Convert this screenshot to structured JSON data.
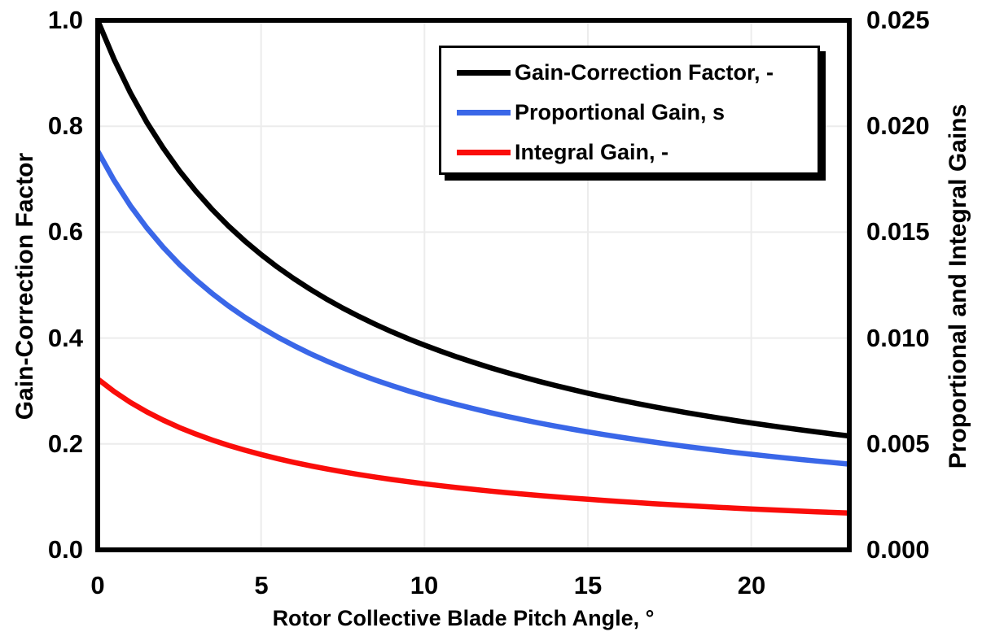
{
  "axes": {
    "x": {
      "title": "Rotor Collective Blade Pitch Angle, °",
      "ticks": [
        "0",
        "5",
        "10",
        "15",
        "20"
      ]
    },
    "y_left": {
      "title": "Gain-Correction Factor",
      "ticks": [
        "1.0",
        "0.8",
        "0.6",
        "0.4",
        "0.2",
        "0.0"
      ]
    },
    "y_right": {
      "title": "Proportional and Integral Gains",
      "ticks": [
        "0.025",
        "0.020",
        "0.015",
        "0.010",
        "0.005",
        "0.000"
      ]
    }
  },
  "legend": {
    "items": [
      {
        "label": "Gain-Correction Factor, -",
        "color": "#000000"
      },
      {
        "label": "Proportional Gain, s",
        "color": "#3A67E8"
      },
      {
        "label": "Integral Gain, -",
        "color": "#FA0D0A"
      }
    ]
  },
  "colors": {
    "background": "#ffffff",
    "frame": "#000000",
    "grid": "#ECECEC",
    "gain_correction": "#000000",
    "proportional_gain": "#3A67E8",
    "integral_gain": "#FA0D0A"
  },
  "chart_data": {
    "type": "line",
    "title": "",
    "xlabel": "Rotor Collective Blade Pitch Angle, °",
    "ylabel_left": "Gain-Correction Factor",
    "ylabel_right": "Proportional and Integral Gains",
    "x_range": [
      0,
      23
    ],
    "y_left_range": [
      0,
      1.0
    ],
    "y_right_range": [
      0,
      0.025
    ],
    "x_tick_values": [
      0,
      5,
      10,
      15,
      20
    ],
    "y_left_tick_values": [
      0.0,
      0.2,
      0.4,
      0.6,
      0.8,
      1.0
    ],
    "y_right_tick_values": [
      0.0,
      0.005,
      0.01,
      0.015,
      0.02,
      0.025
    ],
    "grid": true,
    "grid_x": [
      5,
      10,
      15,
      20
    ],
    "grid_y_left": [
      0.2,
      0.4,
      0.6,
      0.8
    ],
    "grid_color": "#ECECEC",
    "legend_position": "top-center-inside",
    "x": [
      0,
      0.5,
      1,
      1.5,
      2,
      2.5,
      3,
      3.5,
      4,
      4.5,
      5,
      5.5,
      6,
      6.5,
      7,
      7.5,
      8,
      8.5,
      9,
      9.5,
      10,
      10.5,
      11,
      11.5,
      12,
      12.5,
      13,
      13.5,
      14,
      14.5,
      15,
      15.5,
      16,
      16.5,
      17,
      17.5,
      18,
      18.5,
      19,
      19.5,
      20,
      20.5,
      21,
      21.5,
      22,
      22.5,
      23
    ],
    "series": [
      {
        "name": "Gain-Correction Factor, -",
        "axis": "left",
        "color": "#000000",
        "values": [
          1.0,
          0.9265,
          0.8631,
          0.8077,
          0.7591,
          0.716,
          0.6775,
          0.6429,
          0.6117,
          0.5834,
          0.5576,
          0.534,
          0.5123,
          0.4923,
          0.4738,
          0.4566,
          0.4407,
          0.4258,
          0.4119,
          0.3988,
          0.3866,
          0.3751,
          0.3642,
          0.354,
          0.3443,
          0.3352,
          0.3265,
          0.3183,
          0.3104,
          0.303,
          0.2959,
          0.2891,
          0.2826,
          0.2764,
          0.2705,
          0.2648,
          0.2593,
          0.2541,
          0.2491,
          0.2443,
          0.2396,
          0.2351,
          0.2308,
          0.2267,
          0.2227,
          0.2188,
          0.2151
        ]
      },
      {
        "name": "Proportional Gain, s",
        "axis": "right",
        "color": "#3A67E8",
        "values": [
          0.018827,
          0.017443,
          0.016249,
          0.015207,
          0.014291,
          0.01348,
          0.012755,
          0.012105,
          0.011517,
          0.010984,
          0.010498,
          0.010053,
          0.009645,
          0.009268,
          0.00892,
          0.008597,
          0.008296,
          0.008016,
          0.007754,
          0.007509,
          0.007278,
          0.007062,
          0.006858,
          0.006665,
          0.006483,
          0.006311,
          0.006147,
          0.005992,
          0.005844,
          0.005704,
          0.00557,
          0.005442,
          0.00532,
          0.005204,
          0.005092,
          0.004985,
          0.004882,
          0.004784,
          0.00469,
          0.004598,
          0.004511,
          0.004427,
          0.004346,
          0.004268,
          0.004192,
          0.00412,
          0.004049
        ]
      },
      {
        "name": "Integral Gain, -",
        "axis": "right",
        "color": "#FA0D0A",
        "values": [
          0.008069,
          0.007476,
          0.006964,
          0.006517,
          0.006125,
          0.005777,
          0.005467,
          0.005188,
          0.004936,
          0.004707,
          0.004499,
          0.004309,
          0.004133,
          0.003972,
          0.003823,
          0.003684,
          0.003556,
          0.003435,
          0.003323,
          0.003218,
          0.003119,
          0.003027,
          0.002939,
          0.002856,
          0.002778,
          0.002704,
          0.002634,
          0.002568,
          0.002505,
          0.002444,
          0.002387,
          0.002332,
          0.00228,
          0.00223,
          0.002182,
          0.002136,
          0.002092,
          0.00205,
          0.00201,
          0.001971,
          0.001933,
          0.001897,
          0.001862,
          0.001829,
          0.001797,
          0.001766,
          0.001735
        ]
      }
    ]
  }
}
